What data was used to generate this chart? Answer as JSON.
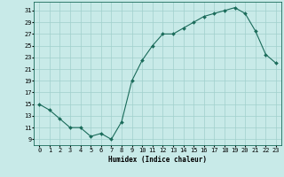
{
  "x": [
    0,
    1,
    2,
    3,
    4,
    5,
    6,
    7,
    8,
    9,
    10,
    11,
    12,
    13,
    14,
    15,
    16,
    17,
    18,
    19,
    20,
    21,
    22,
    23
  ],
  "y": [
    15,
    14,
    12.5,
    11,
    11,
    9.5,
    10,
    9,
    12,
    19,
    22.5,
    25,
    27,
    27,
    28,
    29,
    30,
    30.5,
    31,
    31.5,
    30.5,
    27.5,
    23.5,
    22
  ],
  "line_color": "#1a6b5a",
  "marker_color": "#1a6b5a",
  "bg_color": "#c8eae8",
  "grid_color": "#a0d0cc",
  "xlabel": "Humidex (Indice chaleur)",
  "xlim": [
    -0.5,
    23.5
  ],
  "ylim": [
    8,
    32.5
  ],
  "yticks": [
    9,
    11,
    13,
    15,
    17,
    19,
    21,
    23,
    25,
    27,
    29,
    31
  ],
  "xticks": [
    0,
    1,
    2,
    3,
    4,
    5,
    6,
    7,
    8,
    9,
    10,
    11,
    12,
    13,
    14,
    15,
    16,
    17,
    18,
    19,
    20,
    21,
    22,
    23
  ],
  "label_fontsize": 5.5,
  "tick_fontsize": 5.0
}
